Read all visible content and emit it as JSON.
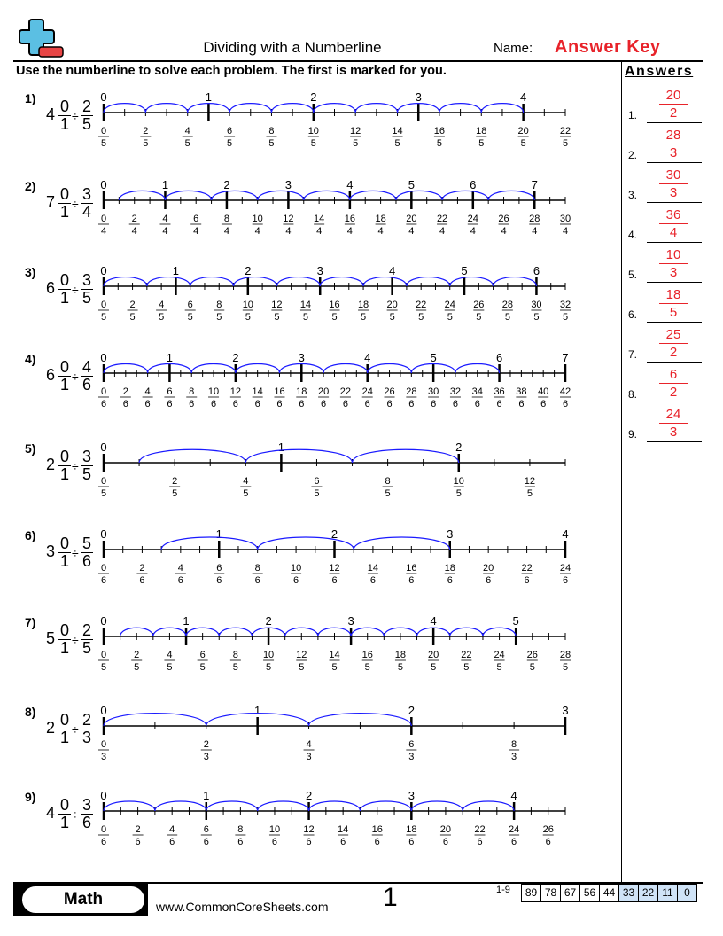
{
  "header": {
    "title": "Dividing with a Numberline",
    "name_label": "Name:",
    "name_value": "Answer Key",
    "instructions": "Use the numberline to solve each problem. The first is marked for you."
  },
  "colors": {
    "accent_red": "#e8232a",
    "arc_blue": "#1a1aff",
    "logo_blue": "#5bbfe3",
    "logo_red": "#e84545",
    "score_highlight": "#cfe3f7"
  },
  "answers": {
    "heading": "Answers",
    "items": [
      {
        "num": "1.",
        "numerator": "20",
        "denominator": "2"
      },
      {
        "num": "2.",
        "numerator": "28",
        "denominator": "3"
      },
      {
        "num": "3.",
        "numerator": "30",
        "denominator": "3"
      },
      {
        "num": "4.",
        "numerator": "36",
        "denominator": "4"
      },
      {
        "num": "5.",
        "numerator": "10",
        "denominator": "3"
      },
      {
        "num": "6.",
        "numerator": "18",
        "denominator": "5"
      },
      {
        "num": "7.",
        "numerator": "25",
        "denominator": "2"
      },
      {
        "num": "8.",
        "numerator": "6",
        "denominator": "2"
      },
      {
        "num": "9.",
        "numerator": "24",
        "denominator": "3"
      }
    ]
  },
  "problems": [
    {
      "label": "1)",
      "whole": "4",
      "f1n": "0",
      "f1d": "1",
      "f2n": "2",
      "f2d": "5",
      "den": 5,
      "maxNum": 22,
      "wholeMax": 4,
      "jump": 2,
      "jumps": 10,
      "axisY": 127,
      "startNum": 0
    },
    {
      "label": "2)",
      "whole": "7",
      "f1n": "0",
      "f1d": "1",
      "f2n": "3",
      "f2d": "4",
      "den": 4,
      "maxNum": 30,
      "wholeMax": 7,
      "jump": 3,
      "jumps": 9,
      "axisY": 226,
      "startNum": 1
    },
    {
      "label": "3)",
      "whole": "6",
      "f1n": "0",
      "f1d": "1",
      "f2n": "3",
      "f2d": "5",
      "den": 5,
      "maxNum": 32,
      "wholeMax": 6,
      "jump": 3,
      "jumps": 10,
      "axisY": 323,
      "startNum": 0
    },
    {
      "label": "4)",
      "whole": "6",
      "f1n": "0",
      "f1d": "1",
      "f2n": "4",
      "f2d": "6",
      "den": 6,
      "maxNum": 42,
      "wholeMax": 7,
      "jump": 4,
      "jumps": 9,
      "axisY": 421,
      "startNum": 0
    },
    {
      "label": "5)",
      "whole": "2",
      "f1n": "0",
      "f1d": "1",
      "f2n": "3",
      "f2d": "5",
      "den": 5,
      "maxNum": 13,
      "wholeMax": 2,
      "jump": 3,
      "jumps": 3,
      "axisY": 522,
      "startNum": 1
    },
    {
      "label": "6)",
      "whole": "3",
      "f1n": "0",
      "f1d": "1",
      "f2n": "5",
      "f2d": "6",
      "den": 6,
      "maxNum": 24,
      "wholeMax": 4,
      "jump": 5,
      "jumps": 3,
      "axisY": 620,
      "startNum": 3
    },
    {
      "label": "7)",
      "whole": "5",
      "f1n": "0",
      "f1d": "1",
      "f2n": "2",
      "f2d": "5",
      "den": 5,
      "maxNum": 28,
      "wholeMax": 5,
      "jump": 2,
      "jumps": 12,
      "axisY": 718,
      "startNum": 1
    },
    {
      "label": "8)",
      "whole": "2",
      "f1n": "0",
      "f1d": "1",
      "f2n": "2",
      "f2d": "3",
      "den": 3,
      "maxNum": 9,
      "wholeMax": 3,
      "jump": 2,
      "jumps": 3,
      "axisY": 819,
      "startNum": 0
    },
    {
      "label": "9)",
      "whole": "4",
      "f1n": "0",
      "f1d": "1",
      "f2n": "3",
      "f2d": "6",
      "den": 6,
      "maxNum": 27,
      "wholeMax": 4,
      "jump": 3,
      "jumps": 8,
      "axisY": 915,
      "startNum": 0
    }
  ],
  "footer": {
    "badge": "Math",
    "url": "www.CommonCoreSheets.com",
    "page": "1",
    "score_label": "1-9",
    "scores": [
      {
        "v": "89",
        "hl": false
      },
      {
        "v": "78",
        "hl": false
      },
      {
        "v": "67",
        "hl": false
      },
      {
        "v": "56",
        "hl": false
      },
      {
        "v": "44",
        "hl": false
      },
      {
        "v": "33",
        "hl": true
      },
      {
        "v": "22",
        "hl": true
      },
      {
        "v": "11",
        "hl": true
      },
      {
        "v": "0",
        "hl": true
      }
    ]
  }
}
